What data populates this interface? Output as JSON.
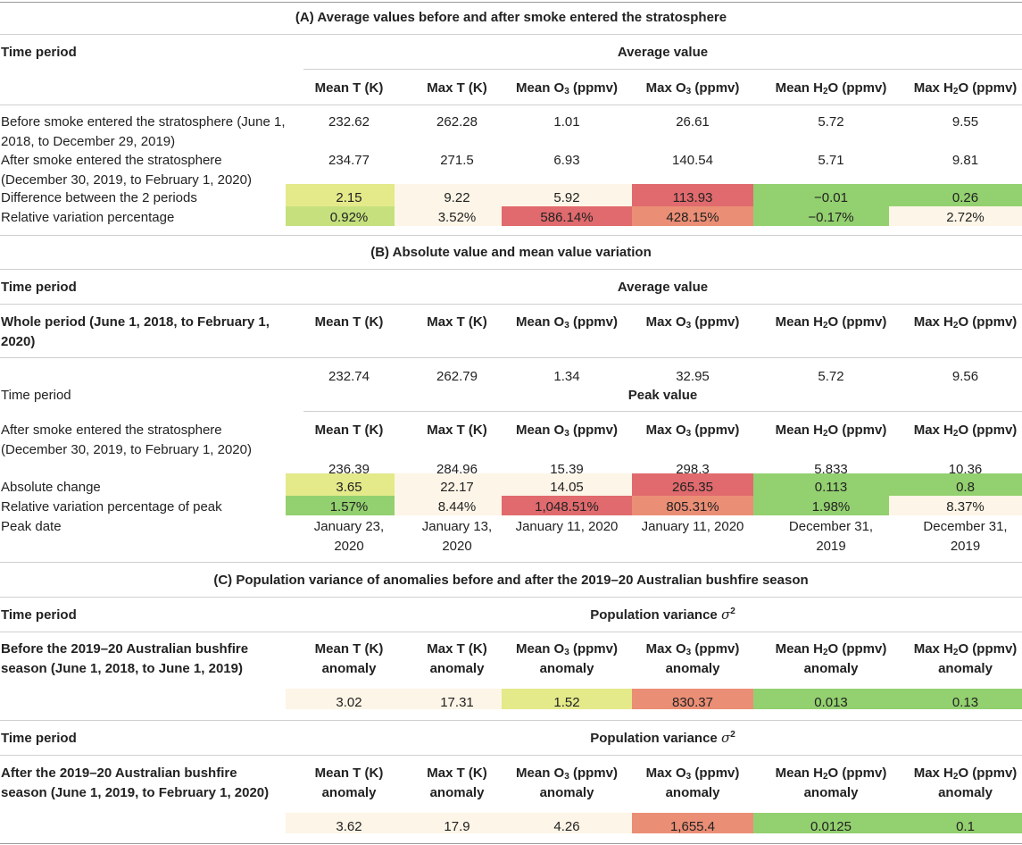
{
  "colors": {
    "pale": "#fdf5e7",
    "yellow": "#e4e98a",
    "yellowgreen": "#c5e07d",
    "green": "#93d06f",
    "red": "#e06a6d",
    "salmon": "#ea8e75"
  },
  "sectionA": {
    "title": "(A) Average values before and after smoke entered the stratosphere",
    "time_period": "Time period",
    "group_header": "Average value",
    "columns": [
      "Mean T (K)",
      "Max T (K)",
      "Mean O",
      "Max O",
      "Mean H",
      "Max H"
    ],
    "before_label_1": "Before smoke entered the stratosphere (June 1,",
    "before_label_2": "2018, to December 29, 2019)",
    "before_values": [
      "232.62",
      "262.28",
      "1.01",
      "26.61",
      "5.72",
      "9.55"
    ],
    "after_label_1": "After smoke entered the stratosphere",
    "after_label_2": "(December 30, 2019, to February 1, 2020)",
    "after_values": [
      "234.77",
      "271.5",
      "6.93",
      "140.54",
      "5.71",
      "9.81"
    ],
    "diff_label": "Difference between the 2 periods",
    "diff_values": [
      "2.15",
      "9.22",
      "5.92",
      "113.93",
      "−0.01",
      "0.26"
    ],
    "rel_label": "Relative variation percentage",
    "rel_values": [
      "0.92%",
      "3.52%",
      "586.14%",
      "428.15%",
      "−0.17%",
      "2.72%"
    ]
  },
  "sectionB": {
    "title": "(B) Absolute value and mean value variation",
    "time_period": "Time period",
    "group_header": "Average value",
    "whole_label_1": "Whole period (June 1, 2018, to February 1,",
    "whole_label_2": "2020)",
    "columns": [
      "Mean T (K)",
      "Max T (K)",
      "Mean O",
      "Max O",
      "Mean H",
      "Max H"
    ],
    "whole_values": [
      "232.74",
      "262.79",
      "1.34",
      "32.95",
      "5.72",
      "9.56"
    ],
    "time_period_2": "Time period",
    "peak_header": "Peak value",
    "after_label_1": "After smoke entered the stratosphere",
    "after_label_2": "(December 30, 2019, to February 1, 2020)",
    "peak_values": [
      "236.39",
      "284.96",
      "15.39",
      "298.3",
      "5.833",
      "10.36"
    ],
    "abs_label": "Absolute change",
    "abs_values": [
      "3.65",
      "22.17",
      "14.05",
      "265.35",
      "0.113",
      "0.8"
    ],
    "relpeak_label": "Relative variation percentage of peak",
    "relpeak_values": [
      "1.57%",
      "8.44%",
      "1,048.51%",
      "805.31%",
      "1.98%",
      "8.37%"
    ],
    "peakdate_label": "Peak date",
    "peakdate_1": [
      "January 23,",
      "January 13,",
      "January 11, 2020",
      "January 11, 2020",
      "December 31,",
      "December 31,"
    ],
    "peakdate_2": [
      "2020",
      "2020",
      "",
      "",
      "2019",
      "2019"
    ]
  },
  "sectionC": {
    "title": "(C) Population variance of anomalies before and after the 2019–20 Australian bushfire season",
    "time_period": "Time period",
    "group_header": "Population variance",
    "sigma": "σ",
    "sigma_exp": "2",
    "before_label_1": "Before the 2019–20 Australian bushfire",
    "before_label_2": "season (June 1, 2018, to June 1, 2019)",
    "columns": [
      "Mean T (K)",
      "Max T (K)",
      "Mean O",
      "Max O",
      "Mean H",
      "Max H"
    ],
    "anomaly": "anomaly",
    "before_values": [
      "3.02",
      "17.31",
      "1.52",
      "830.37",
      "0.013",
      "0.13"
    ],
    "time_period_2": "Time period",
    "group_header_2": "Population variance",
    "after_label_1": "After the 2019–20 Australian bushfire",
    "after_label_2": "season (June 1, 2019, to February 1, 2020)",
    "after_values": [
      "3.62",
      "17.9",
      "4.26",
      "1,655.4",
      "0.0125",
      "0.1"
    ]
  },
  "chem": {
    "o_sub": "3",
    "h_sub": "2",
    "o_suffix": " (ppmv)",
    "h_suffix": "O (ppmv)"
  }
}
